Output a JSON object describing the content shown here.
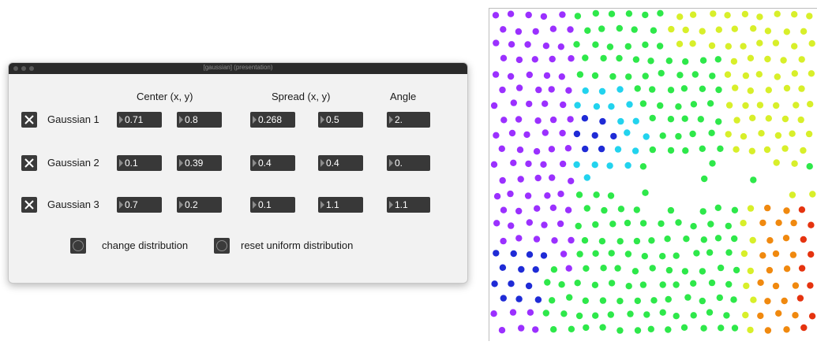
{
  "window": {
    "title": "[gaussian] (presentation)"
  },
  "headers": {
    "center": "Center (x, y)",
    "spread": "Spread (x, y)",
    "angle": "Angle"
  },
  "rows": [
    {
      "label": "Gaussian 1",
      "enabled": true,
      "cx": "0.71",
      "cy": "0.8",
      "sx": "0.268",
      "sy": "0.5",
      "angle": "2."
    },
    {
      "label": "Gaussian 2",
      "enabled": true,
      "cx": "0.1",
      "cy": "0.39",
      "sx": "0.4",
      "sy": "0.4",
      "angle": "0."
    },
    {
      "label": "Gaussian 3",
      "enabled": true,
      "cx": "0.7",
      "cy": "0.2",
      "sx": "0.1",
      "sy": "1.1",
      "angle": "1.1"
    }
  ],
  "buttons": {
    "change": "change distribution",
    "reset": "reset uniform distribution"
  },
  "colors": {
    "window_bg": "#f2f2f2",
    "titlebar": "#2a2a2a",
    "control_bg": "#383838",
    "control_text": "#ffffff",
    "violet": "#9b30ff",
    "blue": "#1f2bd6",
    "cyan": "#22d3ee",
    "green": "#2ee84a",
    "yellow": "#d8ef2a",
    "orange": "#f0890f",
    "red": "#e5330f"
  }
}
